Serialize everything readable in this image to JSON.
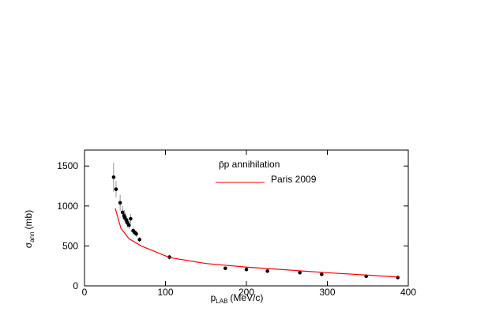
{
  "chart_data": {
    "type": "scatter",
    "x_label": {
      "symbol": "p",
      "subscript": "LAB",
      "unit": "(MeV/c)"
    },
    "y_label": {
      "symbol": "σ",
      "subscript": "ann",
      "unit": "(mb)"
    },
    "xlim": [
      0,
      400
    ],
    "xticks": [
      0,
      100,
      200,
      300,
      400
    ],
    "ylim": [
      0,
      1700
    ],
    "yticks": [
      0,
      500,
      1000,
      1500
    ],
    "series": [
      {
        "name": "p̄p annihilation",
        "type": "errorbar",
        "color": "#000000",
        "x": [
          36,
          39,
          44,
          47,
          49,
          50,
          52,
          53,
          55,
          57,
          60,
          62,
          64,
          68,
          105,
          174,
          200,
          226,
          266,
          293,
          348,
          387
        ],
        "values": [
          1360,
          1210,
          1040,
          920,
          880,
          850,
          820,
          790,
          760,
          840,
          690,
          670,
          650,
          580,
          360,
          220,
          205,
          185,
          165,
          145,
          120,
          105
        ],
        "errors": [
          180,
          100,
          100,
          80,
          70,
          70,
          60,
          60,
          50,
          60,
          50,
          40,
          40,
          30,
          30,
          15,
          10,
          10,
          10,
          10,
          10,
          10
        ]
      },
      {
        "name": "Paris 2009",
        "type": "line",
        "color": "#ff0000",
        "x": [
          38,
          45,
          55,
          70,
          105,
          150,
          200,
          250,
          300,
          350,
          388
        ],
        "values": [
          970,
          720,
          590,
          500,
          355,
          280,
          235,
          200,
          165,
          135,
          110
        ]
      }
    ]
  }
}
